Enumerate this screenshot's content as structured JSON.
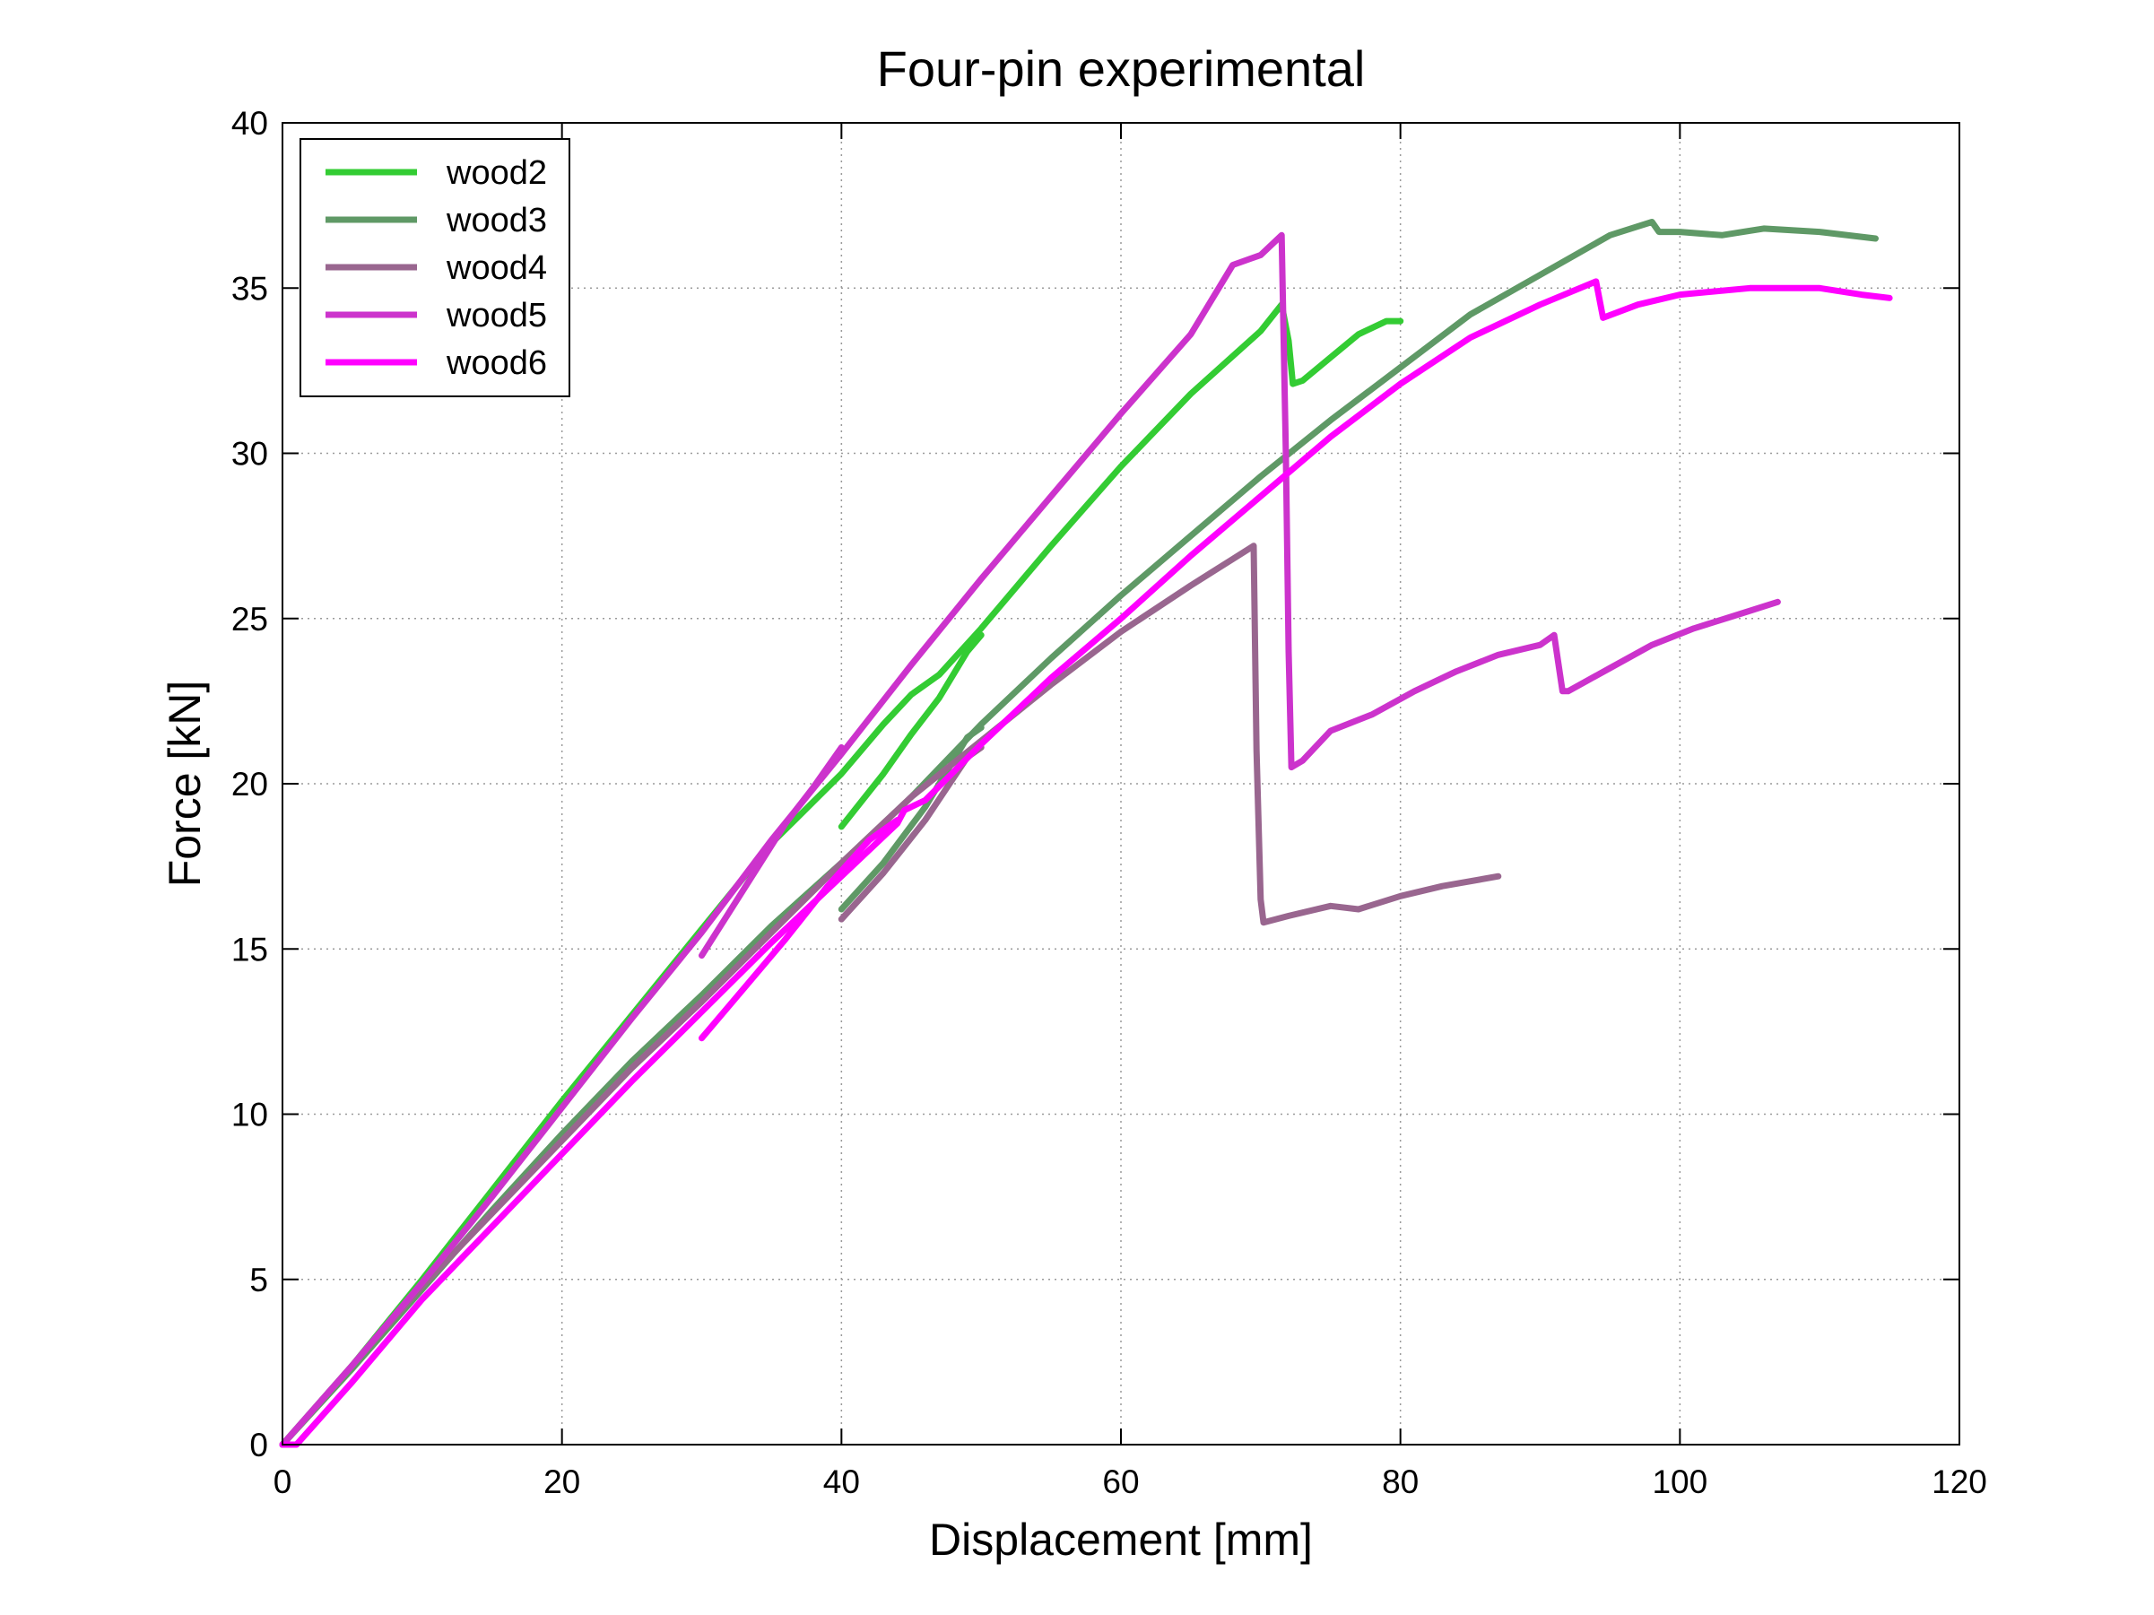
{
  "chart_data": {
    "type": "line",
    "title": "Four-pin experimental",
    "xlabel": "Displacement [mm]",
    "ylabel": "Force [kN]",
    "xlim": [
      0,
      120
    ],
    "ylim": [
      0,
      40
    ],
    "xticks": [
      0,
      20,
      40,
      60,
      80,
      100,
      120
    ],
    "yticks": [
      0,
      5,
      10,
      15,
      20,
      25,
      30,
      35,
      40
    ],
    "grid": true,
    "legend_position": "top-left",
    "series": [
      {
        "name": "wood2",
        "color": "#33cc33",
        "segments": [
          [
            [
              0,
              0
            ],
            [
              5,
              2.4
            ],
            [
              10,
              5
            ],
            [
              15,
              7.7
            ],
            [
              20,
              10.4
            ],
            [
              25,
              13
            ],
            [
              30,
              15.6
            ],
            [
              35,
              18.2
            ],
            [
              40,
              20.3
            ],
            [
              43,
              21.8
            ],
            [
              45,
              22.7
            ],
            [
              47,
              23.3
            ],
            [
              50,
              24.7
            ],
            [
              55,
              27.2
            ],
            [
              60,
              29.6
            ],
            [
              65,
              31.8
            ],
            [
              70,
              33.7
            ],
            [
              71.5,
              34.5
            ],
            [
              72,
              33.4
            ],
            [
              72.3,
              32.1
            ],
            [
              73,
              32.2
            ],
            [
              75,
              32.9
            ],
            [
              77,
              33.6
            ],
            [
              79,
              34
            ],
            [
              80,
              34
            ]
          ],
          [
            [
              40,
              18.7
            ],
            [
              43,
              20.3
            ],
            [
              45,
              21.5
            ],
            [
              47,
              22.6
            ],
            [
              49,
              24
            ],
            [
              50,
              24.5
            ]
          ]
        ]
      },
      {
        "name": "wood3",
        "color": "#5f9966",
        "segments": [
          [
            [
              0,
              0
            ],
            [
              5,
              2.3
            ],
            [
              10,
              4.7
            ],
            [
              15,
              7.1
            ],
            [
              20,
              9.4
            ],
            [
              25,
              11.6
            ],
            [
              30,
              13.6
            ],
            [
              35,
              15.7
            ],
            [
              40,
              17.6
            ],
            [
              45,
              19.6
            ],
            [
              50,
              21.8
            ],
            [
              55,
              23.8
            ],
            [
              60,
              25.7
            ],
            [
              65,
              27.5
            ],
            [
              70,
              29.3
            ],
            [
              75,
              31
            ],
            [
              80,
              32.6
            ],
            [
              85,
              34.2
            ],
            [
              90,
              35.4
            ],
            [
              95,
              36.6
            ],
            [
              98,
              37
            ],
            [
              98.5,
              36.7
            ],
            [
              100,
              36.7
            ],
            [
              103,
              36.6
            ],
            [
              106,
              36.8
            ],
            [
              110,
              36.7
            ],
            [
              114,
              36.5
            ]
          ],
          [
            [
              40,
              16.2
            ],
            [
              43,
              17.6
            ],
            [
              46,
              19.3
            ],
            [
              49,
              21.4
            ],
            [
              50,
              21.7
            ]
          ]
        ]
      },
      {
        "name": "wood4",
        "color": "#99668f",
        "segments": [
          [
            [
              0,
              0
            ],
            [
              5,
              2.4
            ],
            [
              10,
              4.8
            ],
            [
              15,
              7
            ],
            [
              20,
              9.2
            ],
            [
              25,
              11.4
            ],
            [
              30,
              13.4
            ],
            [
              35,
              15.5
            ],
            [
              40,
              17.6
            ],
            [
              45,
              19.6
            ],
            [
              50,
              21.3
            ],
            [
              55,
              23
            ],
            [
              60,
              24.6
            ],
            [
              65,
              26
            ],
            [
              68,
              26.8
            ],
            [
              69.5,
              27.2
            ],
            [
              69.7,
              21
            ],
            [
              70,
              16.5
            ],
            [
              70.2,
              15.8
            ],
            [
              72,
              16
            ],
            [
              75,
              16.3
            ],
            [
              77,
              16.2
            ],
            [
              80,
              16.6
            ],
            [
              83,
              16.9
            ],
            [
              87,
              17.2
            ]
          ],
          [
            [
              40,
              15.9
            ],
            [
              43,
              17.3
            ],
            [
              46,
              18.9
            ],
            [
              49,
              20.8
            ],
            [
              50,
              21.1
            ]
          ]
        ]
      },
      {
        "name": "wood5",
        "color": "#cc33cc",
        "segments": [
          [
            [
              0,
              0
            ],
            [
              5,
              2.4
            ],
            [
              10,
              4.9
            ],
            [
              15,
              7.5
            ],
            [
              20,
              10.2
            ],
            [
              25,
              12.9
            ],
            [
              30,
              15.5
            ],
            [
              35,
              18.3
            ],
            [
              40,
              20.9
            ],
            [
              45,
              23.6
            ],
            [
              50,
              26.2
            ],
            [
              55,
              28.7
            ],
            [
              60,
              31.2
            ],
            [
              65,
              33.6
            ],
            [
              68,
              35.7
            ],
            [
              70,
              36
            ],
            [
              71.5,
              36.6
            ],
            [
              71.8,
              30
            ],
            [
              72,
              24
            ],
            [
              72.2,
              20.5
            ],
            [
              73,
              20.7
            ],
            [
              75,
              21.6
            ],
            [
              78,
              22.1
            ],
            [
              81,
              22.8
            ],
            [
              84,
              23.4
            ],
            [
              87,
              23.9
            ],
            [
              90,
              24.2
            ],
            [
              91,
              24.5
            ],
            [
              91.6,
              22.8
            ],
            [
              92,
              22.8
            ],
            [
              95,
              23.5
            ],
            [
              98,
              24.2
            ],
            [
              101,
              24.7
            ],
            [
              104,
              25.1
            ],
            [
              107,
              25.5
            ]
          ],
          [
            [
              30,
              14.8
            ],
            [
              33,
              16.8
            ],
            [
              36,
              18.8
            ],
            [
              38,
              19.9
            ],
            [
              40,
              21.1
            ]
          ]
        ]
      },
      {
        "name": "wood6",
        "color": "#ff00ff",
        "segments": [
          [
            [
              0,
              0
            ],
            [
              1,
              0
            ],
            [
              5,
              1.9
            ],
            [
              10,
              4.4
            ],
            [
              15,
              6.6
            ],
            [
              20,
              8.8
            ],
            [
              25,
              11
            ],
            [
              30,
              13.1
            ],
            [
              35,
              15.2
            ],
            [
              40,
              17.2
            ],
            [
              44,
              18.8
            ],
            [
              44.5,
              19.2
            ],
            [
              46,
              19.5
            ],
            [
              50,
              21.2
            ],
            [
              55,
              23.2
            ],
            [
              60,
              25
            ],
            [
              65,
              26.9
            ],
            [
              70,
              28.7
            ],
            [
              75,
              30.5
            ],
            [
              80,
              32.1
            ],
            [
              85,
              33.5
            ],
            [
              90,
              34.5
            ],
            [
              94,
              35.2
            ],
            [
              94.5,
              34.1
            ],
            [
              97,
              34.5
            ],
            [
              100,
              34.8
            ],
            [
              105,
              35
            ],
            [
              110,
              35
            ],
            [
              113,
              34.8
            ],
            [
              115,
              34.7
            ]
          ],
          [
            [
              30,
              12.3
            ],
            [
              33,
              13.8
            ],
            [
              36,
              15.3
            ],
            [
              39,
              16.9
            ],
            [
              42,
              18.3
            ],
            [
              44,
              18.9
            ]
          ]
        ]
      }
    ]
  }
}
